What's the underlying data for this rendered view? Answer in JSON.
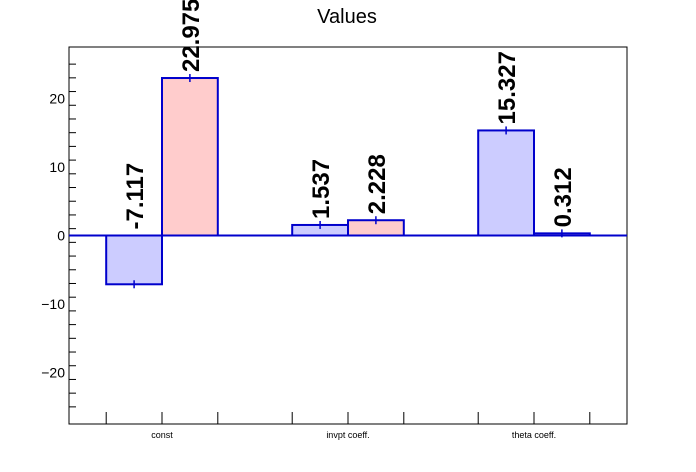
{
  "chart_data": {
    "type": "bar",
    "title": "Values",
    "categories": [
      "const",
      "invpt coeff.",
      "theta coeff."
    ],
    "series": [
      {
        "values": [
          -7.117,
          1.537,
          15.327
        ],
        "fill": "#ccccff",
        "stroke": "#0000cc"
      },
      {
        "values": [
          22.975,
          2.228,
          0.312
        ],
        "fill": "#ffcccc",
        "stroke": "#0000cc"
      }
    ],
    "data_labels": [
      [
        "-7.117",
        "1.537",
        "15.327"
      ],
      [
        "22.975",
        "2.228",
        "0.312"
      ]
    ],
    "yticks": [
      -20,
      -10,
      0,
      10,
      20
    ],
    "ylim": [
      -27.5,
      27.5
    ],
    "xlabel": "",
    "ylabel": "",
    "grid": false,
    "zero_line_color": "#0000cc"
  }
}
